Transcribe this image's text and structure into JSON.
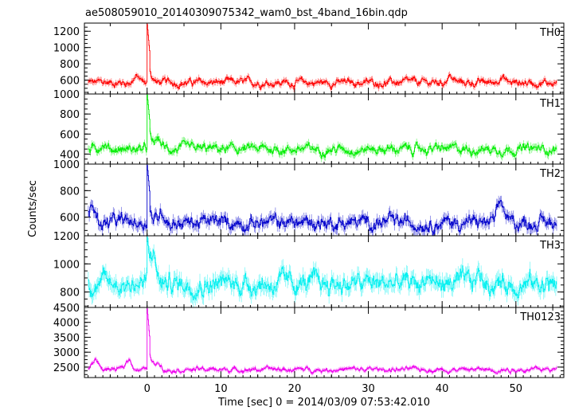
{
  "chart_data": {
    "type": "line",
    "title": "ae508059010_20140309075342_wam0_bst_4band_16bin.qdp",
    "xlabel": "Time [sec] 0 = 2014/03/09 07:53:42.010",
    "ylabel": "Counts/sec",
    "xlim": [
      -8.5,
      56.5
    ],
    "x_ticks": [
      0,
      10,
      20,
      30,
      40,
      50
    ],
    "x_tick_labels": [
      "0",
      "10",
      "20",
      "30",
      "40",
      "50"
    ],
    "grid": false,
    "legend": "none",
    "time_range": [
      -8,
      55.5
    ],
    "panels": [
      {
        "name": "TH0",
        "color": "#ff0000",
        "ylim": [
          430,
          1300
        ],
        "yticks": [
          600,
          800,
          1000,
          1200
        ],
        "ytick_labels": [
          "600",
          "800",
          "1000",
          "1200"
        ],
        "baseline": 570,
        "noise": 40,
        "spike_peak": 1280,
        "bumps": [
          [
            41,
            650
          ],
          [
            -1.5,
            640
          ],
          [
            48,
            650
          ]
        ]
      },
      {
        "name": "TH1",
        "color": "#00ee00",
        "ylim": [
          300,
          1000
        ],
        "yticks": [
          400,
          600,
          800,
          1000
        ],
        "ytick_labels": [
          "400",
          "600",
          "800",
          "1000"
        ],
        "baseline": 450,
        "noise": 40,
        "spike_peak": 990,
        "bumps": [
          [
            1.5,
            540
          ],
          [
            -6,
            510
          ]
        ]
      },
      {
        "name": "TH2",
        "color": "#0000cc",
        "ylim": [
          460,
          1000
        ],
        "yticks": [
          600,
          800,
          1000
        ],
        "ytick_labels": [
          "600",
          "800",
          "1000"
        ],
        "baseline": 560,
        "noise": 45,
        "spike_peak": 990,
        "bumps": [
          [
            2,
            650
          ],
          [
            -7.5,
            680
          ],
          [
            48,
            700
          ]
        ]
      },
      {
        "name": "TH3",
        "color": "#00f0f0",
        "ylim": [
          690,
          1200
        ],
        "yticks": [
          800,
          1000,
          1200
        ],
        "ytick_labels": [
          "800",
          "1000",
          "1200"
        ],
        "baseline": 860,
        "noise": 60,
        "spike_peak": 1190,
        "bumps": [
          [
            0.8,
            1050
          ],
          [
            45,
            920
          ],
          [
            38,
            920
          ]
        ]
      },
      {
        "name": "TH0123",
        "color": "#ee00ee",
        "ylim": [
          2150,
          4500
        ],
        "yticks": [
          2500,
          3000,
          3500,
          4000,
          4500
        ],
        "ytick_labels": [
          "2500",
          "3000",
          "3500",
          "4000",
          "4500"
        ],
        "baseline": 2420,
        "noise": 70,
        "spike_peak": 4450,
        "bumps": [
          [
            -7,
            2750
          ],
          [
            1.5,
            2650
          ],
          [
            -2.5,
            2750
          ]
        ]
      }
    ]
  }
}
